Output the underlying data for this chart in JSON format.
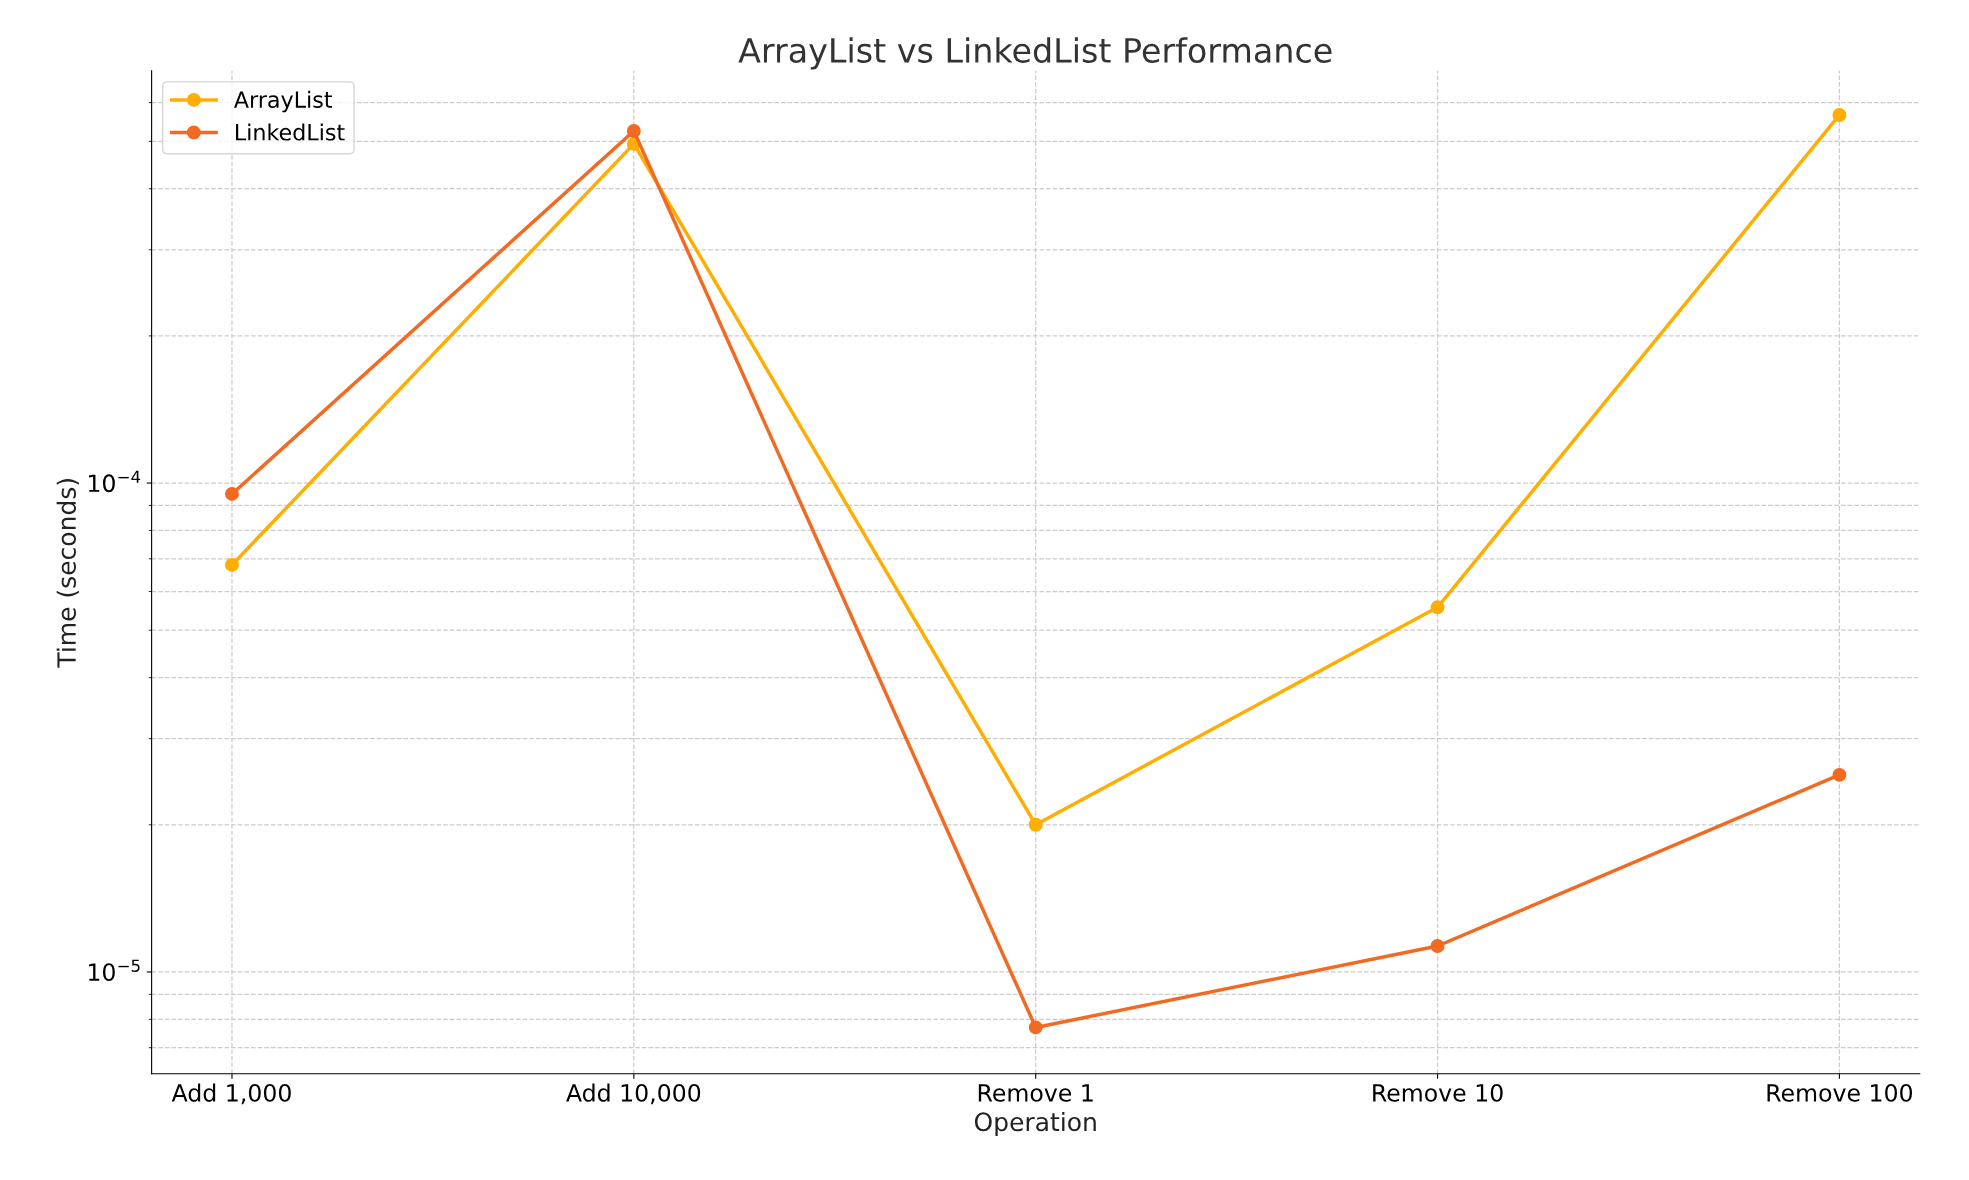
{
  "chart_data": {
    "type": "line",
    "title": "ArrayList vs LinkedList Performance",
    "xlabel": "Operation",
    "ylabel": "Time (seconds)",
    "categories": [
      "Add 1,000",
      "Add 10,000",
      "Remove 1",
      "Remove 10",
      "Remove 100"
    ],
    "series": [
      {
        "name": "ArrayList",
        "color": "#ffad00",
        "values": [
          6.8e-05,
          0.000494,
          2e-05,
          5.57e-05,
          0.000566
        ]
      },
      {
        "name": "LinkedList",
        "color": "#f26a22",
        "values": [
          9.5e-05,
          0.000525,
          7.7e-06,
          1.13e-05,
          2.53e-05
        ]
      }
    ],
    "log": true,
    "ylim": [
      6.19e-06,
      0.000697
    ],
    "yticks": [
      {
        "value": 1e-05,
        "label": "10$^{−5}$"
      },
      {
        "value": 0.0001,
        "label": "10$^{−4}$"
      }
    ],
    "grid": true,
    "legend": "top left",
    "marker": "circle",
    "line_style": "solid"
  }
}
